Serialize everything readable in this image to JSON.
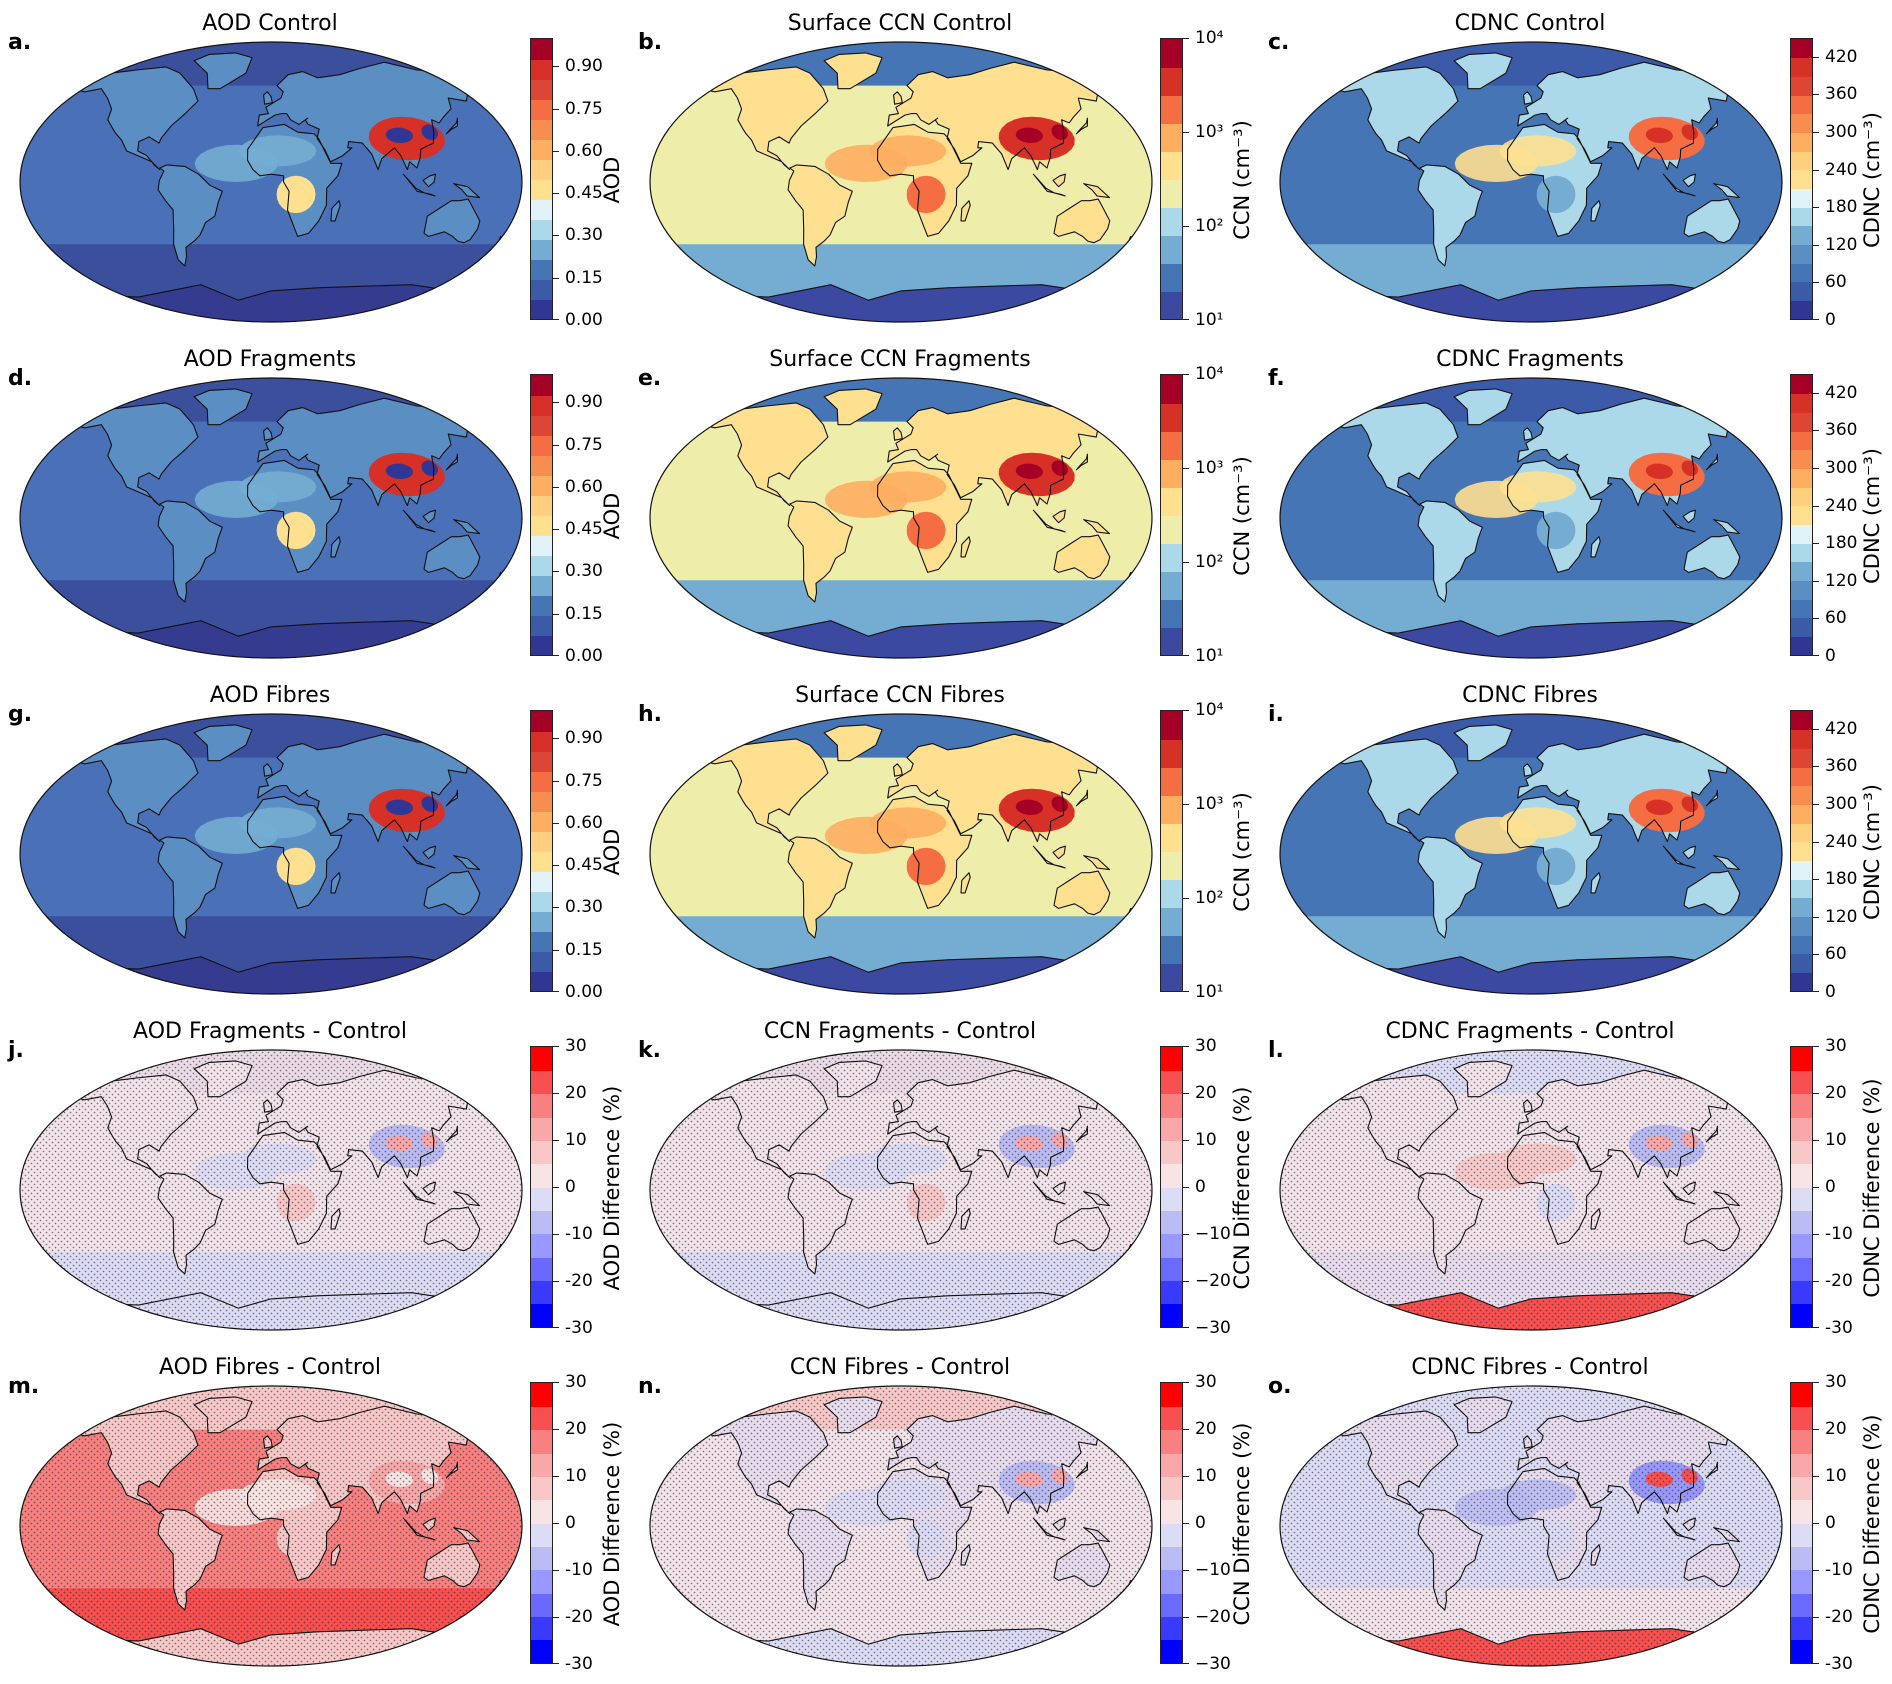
{
  "panels": [
    {
      "letter": "a.",
      "title": "AOD Control",
      "field": "aod",
      "colorbar": "aod",
      "stipple": false
    },
    {
      "letter": "b.",
      "title": "Surface CCN Control",
      "field": "ccn",
      "colorbar": "ccn",
      "stipple": false
    },
    {
      "letter": "c.",
      "title": "CDNC Control",
      "field": "cdnc",
      "colorbar": "cdnc",
      "stipple": false
    },
    {
      "letter": "d.",
      "title": "AOD Fragments",
      "field": "aod",
      "colorbar": "aod",
      "stipple": false
    },
    {
      "letter": "e.",
      "title": "Surface CCN Fragments",
      "field": "ccn",
      "colorbar": "ccn",
      "stipple": false
    },
    {
      "letter": "f.",
      "title": "CDNC Fragments",
      "field": "cdnc",
      "colorbar": "cdnc",
      "stipple": false
    },
    {
      "letter": "g.",
      "title": "AOD Fibres",
      "field": "aod",
      "colorbar": "aod",
      "stipple": false
    },
    {
      "letter": "h.",
      "title": "Surface CCN Fibres",
      "field": "ccn",
      "colorbar": "ccn",
      "stipple": false
    },
    {
      "letter": "i.",
      "title": "CDNC Fibres",
      "field": "cdnc",
      "colorbar": "cdnc",
      "stipple": false
    },
    {
      "letter": "j.",
      "title": "AOD Fragments - Control",
      "field": "diff_small",
      "colorbar": "aod_diff",
      "stipple": true
    },
    {
      "letter": "k.",
      "title": "CCN Fragments - Control",
      "field": "diff_small",
      "colorbar": "ccn_diff",
      "stipple": true
    },
    {
      "letter": "l.",
      "title": "CDNC Fragments - Control",
      "field": "diff_cdnc",
      "colorbar": "cdnc_diff",
      "stipple": true
    },
    {
      "letter": "m.",
      "title": "AOD Fibres - Control",
      "field": "diff_aod_fibres",
      "colorbar": "aod_diff",
      "stipple": true
    },
    {
      "letter": "n.",
      "title": "CCN Fibres - Control",
      "field": "diff_ccn_fibres",
      "colorbar": "ccn_diff",
      "stipple": true
    },
    {
      "letter": "o.",
      "title": "CDNC Fibres - Control",
      "field": "diff_cdnc_fibres",
      "colorbar": "cdnc_diff",
      "stipple": true
    }
  ],
  "colorbars": {
    "aod": {
      "label": "AOD",
      "ticks": [
        "0.00",
        "0.15",
        "0.30",
        "0.45",
        "0.60",
        "0.75",
        "0.90"
      ],
      "tick_fractions": [
        0.0,
        0.15,
        0.3,
        0.45,
        0.6,
        0.75,
        0.9
      ],
      "colors": [
        "#313695",
        "#3b5aa8",
        "#4575b4",
        "#74add1",
        "#abd9e9",
        "#e0f3f8",
        "#fee090",
        "#fdd080",
        "#fdae61",
        "#f88d52",
        "#f46d43",
        "#dd4535",
        "#d73027",
        "#a50026"
      ]
    },
    "ccn": {
      "label": "CCN (cm⁻³)",
      "ticks": [
        "10¹",
        "10²",
        "10³",
        "10⁴"
      ],
      "tick_fractions": [
        0.0,
        0.3333,
        0.6667,
        1.0
      ],
      "colors": [
        "#3b4aa0",
        "#4575b4",
        "#74add1",
        "#abd9e9",
        "#eeeeaa",
        "#fee090",
        "#fdae61",
        "#f46d43",
        "#d73027",
        "#a50026"
      ]
    },
    "cdnc": {
      "label": "CDNC (cm⁻³)",
      "ticks": [
        "0",
        "60",
        "120",
        "180",
        "240",
        "300",
        "360",
        "420"
      ],
      "tick_fractions": [
        0.0,
        0.1333,
        0.2667,
        0.4,
        0.5333,
        0.6667,
        0.8,
        0.9333
      ],
      "colors": [
        "#313695",
        "#3b5aa8",
        "#4575b4",
        "#5b8ec2",
        "#74add1",
        "#abd9e9",
        "#e0f3f8",
        "#fee090",
        "#fdd080",
        "#fdae61",
        "#f88d52",
        "#f46d43",
        "#dd4535",
        "#d73027",
        "#a50026"
      ]
    },
    "aod_diff": {
      "label": "AOD Difference (%)",
      "ticks": [
        "-30",
        "-20",
        "-10",
        "0",
        "10",
        "20",
        "30"
      ],
      "tick_fractions": [
        0.0,
        0.1667,
        0.3333,
        0.5,
        0.6667,
        0.8333,
        1.0
      ],
      "colors": [
        "#0000ff",
        "#3a3aff",
        "#6a6aff",
        "#9898ff",
        "#bcbcf4",
        "#dcdcf6",
        "#f8e4e4",
        "#f8c8c8",
        "#f8a8a8",
        "#f88080",
        "#f85050",
        "#ff0000"
      ]
    },
    "ccn_diff": {
      "label": "CCN Difference (%)",
      "ticks": [
        "−30",
        "−20",
        "−10",
        "0",
        "10",
        "20",
        "30"
      ],
      "tick_fractions": [
        0.0,
        0.1667,
        0.3333,
        0.5,
        0.6667,
        0.8333,
        1.0
      ],
      "colors": [
        "#0000ff",
        "#3a3aff",
        "#6a6aff",
        "#9898ff",
        "#bcbcf4",
        "#dcdcf6",
        "#f8e4e4",
        "#f8c8c8",
        "#f8a8a8",
        "#f88080",
        "#f85050",
        "#ff0000"
      ]
    },
    "cdnc_diff": {
      "label": "CDNC Difference (%)",
      "ticks": [
        "-30",
        "-20",
        "-10",
        "0",
        "10",
        "20",
        "30"
      ],
      "tick_fractions": [
        0.0,
        0.1667,
        0.3333,
        0.5,
        0.6667,
        0.8333,
        1.0
      ],
      "colors": [
        "#0000ff",
        "#3a3aff",
        "#6a6aff",
        "#9898ff",
        "#bcbcf4",
        "#dcdcf6",
        "#f8e4e4",
        "#f8c8c8",
        "#f8a8a8",
        "#f88080",
        "#f85050",
        "#ff0000"
      ]
    }
  },
  "fields": {
    "aod": {
      "ocean": "#4a70b8",
      "ocean_south": "#3b4f9c",
      "arctic": "#3b4f9c",
      "land": "#5b8ec2",
      "saharan_plume": "#74add1",
      "africa_smoke": "#fee090",
      "asia_hotspot": "#d73027",
      "asia_core": "#313695",
      "antarctica": "#353c8f"
    },
    "ccn": {
      "ocean": "#eeeeaa",
      "ocean_south": "#74add1",
      "arctic": "#4575b4",
      "land": "#fee090",
      "saharan_plume": "#fdae61",
      "africa_smoke": "#f46d43",
      "asia_hotspot": "#d73027",
      "asia_core": "#a50026",
      "antarctica": "#3b4aa0"
    },
    "cdnc": {
      "ocean": "#4575b4",
      "ocean_south": "#74add1",
      "arctic": "#3b5aa8",
      "land": "#abd9e9",
      "saharan_plume": "#fee090",
      "africa_smoke": "#74add1",
      "asia_hotspot": "#f46d43",
      "asia_core": "#d73027",
      "antarctica": "#3b4aa0"
    },
    "diff_small": {
      "ocean": "#f3e3ea",
      "ocean_south": "#dcdcf6",
      "arctic": "#ebdbe6",
      "land": "#f3e3ea",
      "saharan_plume": "#dcdcf6",
      "africa_smoke": "#f8c8c8",
      "asia_hotspot": "#bcbcf4",
      "asia_core": "#f8a8a8",
      "antarctica": "#dcdcf6"
    },
    "diff_cdnc": {
      "ocean": "#f3e3ea",
      "ocean_south": "#e8dcef",
      "arctic": "#dcdcf6",
      "land": "#f3e3ea",
      "saharan_plume": "#f8c8c8",
      "africa_smoke": "#dcdcf6",
      "asia_hotspot": "#bcbcf4",
      "asia_core": "#f8a8a8",
      "antarctica": "#f85050"
    },
    "diff_aod_fibres": {
      "ocean": "#f88080",
      "ocean_south": "#f85050",
      "arctic": "#f8c8c8",
      "land": "#f8c8c8",
      "saharan_plume": "#f8e4e4",
      "africa_smoke": "#f8c8c8",
      "asia_hotspot": "#f8a8a8",
      "asia_core": "#f8e4e4",
      "antarctica": "#f8c8c8"
    },
    "diff_ccn_fibres": {
      "ocean": "#f3e3ea",
      "ocean_south": "#f3e3ea",
      "arctic": "#f8c8c8",
      "land": "#e8dcef",
      "saharan_plume": "#dcdcf6",
      "africa_smoke": "#dcdcf6",
      "asia_hotspot": "#bcbcf4",
      "asia_core": "#f8a8a8",
      "antarctica": "#dcdcf6"
    },
    "diff_cdnc_fibres": {
      "ocean": "#dcdcf6",
      "ocean_south": "#f3e3ea",
      "arctic": "#dcdcf6",
      "land": "#e8dcef",
      "saharan_plume": "#bcbcf4",
      "africa_smoke": "#dcdcf6",
      "asia_hotspot": "#9898ff",
      "asia_core": "#f85050",
      "antarctica": "#f85050"
    }
  }
}
